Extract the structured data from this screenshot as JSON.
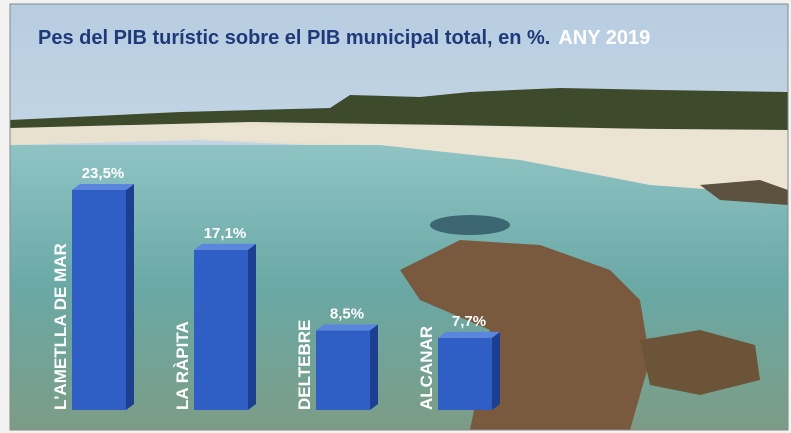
{
  "chart_data": {
    "type": "bar3d",
    "title": "Pes del PIB turístic sobre el PIB municipal total, en %.",
    "subtitle": "ANY 2019",
    "categories": [
      "L'AMETLLA DE MAR",
      "LA RÀPITA",
      "DELTEBRE",
      "ALCANAR"
    ],
    "values": [
      23.5,
      17.1,
      8.5,
      7.7
    ],
    "value_labels": [
      "23,5%",
      "17,1%",
      "8,5%",
      "7,7%"
    ],
    "color": "#2f5fc4"
  }
}
